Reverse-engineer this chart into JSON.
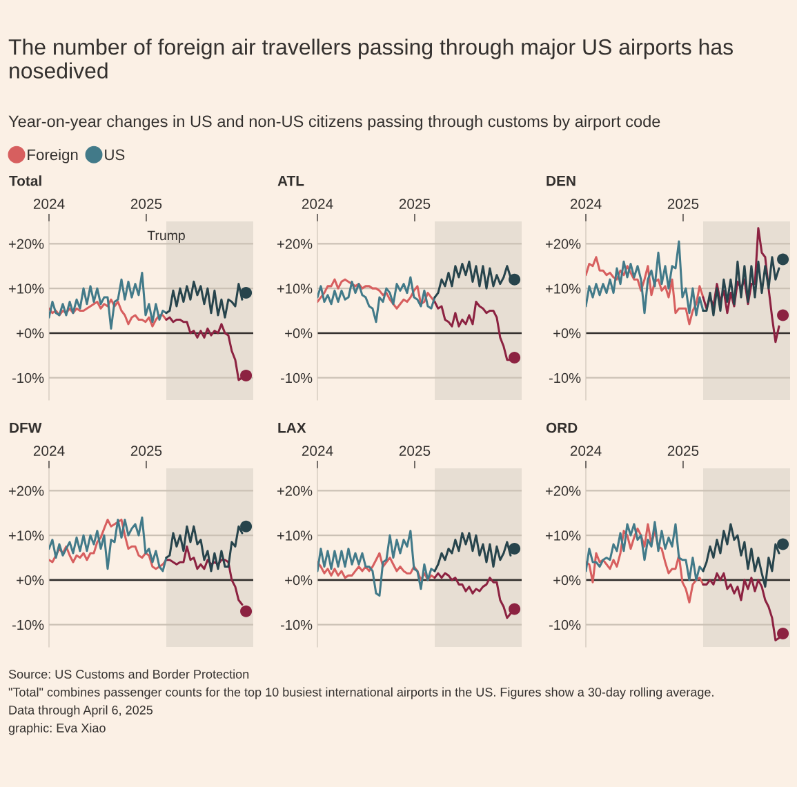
{
  "chart_data": [
    {
      "type": "other",
      "title": "The number of foreign air travellers passing through major US airports has nosedived",
      "subtitle": "Year-on-year changes in US and non-US citizens passing through customs by airport code",
      "annotations": [
        "Source: US Customs and Border Protection",
        "\"Total\" combines passenger counts for the top 10 busiest international airports in the US. Figures show a 30-day rolling average.",
        "Data through April 6, 2025",
        "graphic: Eva Xiao"
      ]
    },
    {
      "type": "line",
      "title": "Total",
      "legend": "top left",
      "grid": "y",
      "xlim": [
        2024,
        2026.1
      ],
      "xticks": [
        2024,
        2025
      ],
      "ylim": [
        -15,
        25
      ],
      "yticks": [
        {
          "value": 20,
          "label": "+20%"
        },
        {
          "value": 10,
          "label": "+10%"
        },
        {
          "value": 0,
          "label": "+0%"
        },
        {
          "value": -10,
          "label": "-10%"
        }
      ],
      "bands": [
        {
          "axis": "x",
          "from": 2025.206,
          "to": 2026.1,
          "label": "Trump",
          "color": "#e7ded3"
        }
      ],
      "ref_lines": [
        {
          "axis": "y",
          "value": 0,
          "color": "#33302e"
        }
      ],
      "x": [
        2024,
        2024.035,
        2024.071,
        2024.106,
        2024.142,
        2024.177,
        2024.213,
        2024.248,
        2024.284,
        2024.319,
        2024.355,
        2024.39,
        2024.426,
        2024.461,
        2024.496,
        2024.532,
        2024.567,
        2024.603,
        2024.638,
        2024.674,
        2024.709,
        2024.745,
        2024.78,
        2024.816,
        2024.851,
        2024.887,
        2024.922,
        2024.957,
        2024.993,
        2025.028,
        2025.064,
        2025.099,
        2025.135,
        2025.17,
        2025.206
      ],
      "series": [
        {
          "name": "Foreign",
          "color": "#d75f5f",
          "values": [
            5.5,
            4.5,
            5,
            4,
            5,
            4.5,
            5.5,
            4.5,
            5.5,
            5,
            5,
            5.5,
            6,
            6.5,
            7,
            5.5,
            6.5,
            6,
            7.5,
            6,
            7,
            5,
            4,
            2,
            3.5,
            4,
            3,
            3,
            2.5,
            3.5,
            1.5,
            3,
            4,
            4,
            3
          ]
        },
        {
          "color": "#8c2241",
          "x": [
            2025.206,
            2025.241,
            2025.277,
            2025.312,
            2025.348,
            2025.383,
            2025.418,
            2025.454,
            2025.489,
            2025.525,
            2025.56,
            2025.596,
            2025.631,
            2025.667,
            2025.702,
            2025.738,
            2025.773,
            2025.809,
            2025.844,
            2025.879,
            2025.915,
            2025.95,
            2025.986
          ],
          "values": [
            3,
            3.5,
            2.5,
            3,
            3,
            2.5,
            2.5,
            0,
            0.5,
            -1,
            0.5,
            -1,
            1,
            -0.5,
            0.5,
            0,
            2,
            0,
            -0.5,
            -4,
            -6,
            -10.5,
            -10
          ]
        },
        {
          "name": "US",
          "color": "#427a89",
          "values": [
            3.5,
            7,
            4.5,
            4,
            6.5,
            4,
            7,
            4.5,
            7.5,
            5.5,
            10,
            6.5,
            10.5,
            7,
            10,
            6.5,
            8,
            8,
            1,
            7,
            7.5,
            12,
            7.5,
            11.5,
            8,
            11,
            8.5,
            13.5,
            4,
            6.5,
            2.5,
            6.5,
            3,
            5,
            4.5
          ]
        },
        {
          "color": "#27444c",
          "x": [
            2025.206,
            2025.241,
            2025.277,
            2025.312,
            2025.348,
            2025.383,
            2025.418,
            2025.454,
            2025.489,
            2025.525,
            2025.56,
            2025.596,
            2025.631,
            2025.667,
            2025.702,
            2025.738,
            2025.773,
            2025.809,
            2025.844,
            2025.879,
            2025.915,
            2025.95,
            2025.986
          ],
          "values": [
            4.5,
            5,
            9.5,
            6,
            10,
            7,
            10.5,
            7.5,
            11.5,
            8.5,
            10.5,
            6.5,
            10,
            4.5,
            9.5,
            4,
            7.5,
            3.5,
            7.5,
            7,
            6,
            11,
            7.5
          ]
        },
        {
          "type": "scatter",
          "marker": "circle",
          "color": "#8c2241",
          "x": [
            2026.026
          ],
          "values": [
            -9.5
          ]
        },
        {
          "type": "scatter",
          "marker": "circle",
          "color": "#27444c",
          "x": [
            2026.026
          ],
          "values": [
            9
          ]
        }
      ]
    },
    {
      "type": "line",
      "title": "ATL",
      "grid": "y",
      "xlim": [
        2024,
        2026.1
      ],
      "xticks": [
        2024,
        2025
      ],
      "ylim": [
        -15,
        25
      ],
      "yticks": [
        {
          "value": 20,
          "label": "+20%"
        },
        {
          "value": 10,
          "label": "+10%"
        },
        {
          "value": 0,
          "label": "+0%"
        },
        {
          "value": -10,
          "label": "-10%"
        }
      ],
      "bands": [
        {
          "axis": "x",
          "from": 2025.206,
          "to": 2026.1,
          "color": "#e7ded3"
        }
      ],
      "ref_lines": [
        {
          "axis": "y",
          "value": 0,
          "color": "#33302e"
        }
      ],
      "x": [
        2024,
        2024.035,
        2024.071,
        2024.106,
        2024.142,
        2024.177,
        2024.213,
        2024.248,
        2024.284,
        2024.319,
        2024.355,
        2024.39,
        2024.426,
        2024.461,
        2024.496,
        2024.532,
        2024.567,
        2024.603,
        2024.638,
        2024.674,
        2024.709,
        2024.745,
        2024.78,
        2024.816,
        2024.851,
        2024.887,
        2024.922,
        2024.957,
        2024.993,
        2025.028,
        2025.064,
        2025.099,
        2025.135,
        2025.17,
        2025.206
      ],
      "series": [
        {
          "color": "#d75f5f",
          "values": [
            7,
            8,
            9,
            10.5,
            10.5,
            12,
            10,
            11.5,
            12,
            11.5,
            11,
            10.5,
            11,
            10,
            10.5,
            10.5,
            10,
            10,
            9.5,
            8.5,
            9,
            7.5,
            6.5,
            5.5,
            6.5,
            7.5,
            7,
            8,
            9.5,
            10.5,
            6.5,
            7,
            9,
            8,
            7
          ]
        },
        {
          "color": "#8c2241",
          "x": [
            2025.206,
            2025.241,
            2025.277,
            2025.312,
            2025.348,
            2025.383,
            2025.418,
            2025.454,
            2025.489,
            2025.525,
            2025.56,
            2025.596,
            2025.631,
            2025.667,
            2025.702,
            2025.738,
            2025.773,
            2025.809,
            2025.844,
            2025.879,
            2025.915,
            2025.95,
            2025.986
          ],
          "values": [
            7,
            5.5,
            6,
            3,
            2.5,
            1.5,
            4.5,
            1.5,
            3,
            2,
            4,
            2,
            7,
            6,
            5.5,
            4.5,
            5,
            5,
            3.5,
            -1,
            -3,
            -6,
            -6
          ]
        },
        {
          "color": "#427a89",
          "values": [
            8,
            10.5,
            7,
            8.5,
            6.5,
            9.5,
            7,
            9.5,
            7.5,
            8,
            11.5,
            9,
            11,
            8.5,
            8,
            6,
            5.5,
            2.5,
            8,
            7,
            10,
            9,
            6.5,
            11,
            9.5,
            11,
            9,
            12.5,
            8,
            7.5,
            6,
            9.5,
            6,
            5.5,
            8
          ]
        },
        {
          "color": "#27444c",
          "x": [
            2025.206,
            2025.241,
            2025.277,
            2025.312,
            2025.348,
            2025.383,
            2025.418,
            2025.454,
            2025.489,
            2025.525,
            2025.56,
            2025.596,
            2025.631,
            2025.667,
            2025.702,
            2025.738,
            2025.773,
            2025.809,
            2025.844,
            2025.879,
            2025.915,
            2025.95,
            2025.986
          ],
          "values": [
            8,
            9,
            12,
            10.5,
            13.5,
            10.5,
            15,
            12.5,
            15.5,
            13,
            16,
            11.5,
            15,
            10.5,
            15,
            10,
            14.5,
            10.5,
            13,
            11,
            12.5,
            15,
            12.5
          ]
        },
        {
          "type": "scatter",
          "marker": "circle",
          "color": "#8c2241",
          "x": [
            2026.026
          ],
          "values": [
            -5.5
          ]
        },
        {
          "type": "scatter",
          "marker": "circle",
          "color": "#27444c",
          "x": [
            2026.026
          ],
          "values": [
            12
          ]
        }
      ]
    },
    {
      "type": "line",
      "title": "DEN",
      "grid": "y",
      "xlim": [
        2024,
        2026.1
      ],
      "xticks": [
        2024,
        2025
      ],
      "ylim": [
        -15,
        25
      ],
      "yticks": [
        {
          "value": 20,
          "label": "+20%"
        },
        {
          "value": 10,
          "label": "+10%"
        },
        {
          "value": 0,
          "label": "+0%"
        },
        {
          "value": -10,
          "label": "-10%"
        }
      ],
      "bands": [
        {
          "axis": "x",
          "from": 2025.206,
          "to": 2026.1,
          "color": "#e7ded3"
        }
      ],
      "ref_lines": [
        {
          "axis": "y",
          "value": 0,
          "color": "#33302e"
        }
      ],
      "x": [
        2024,
        2024.035,
        2024.071,
        2024.106,
        2024.142,
        2024.177,
        2024.213,
        2024.248,
        2024.284,
        2024.319,
        2024.355,
        2024.39,
        2024.426,
        2024.461,
        2024.496,
        2024.532,
        2024.567,
        2024.603,
        2024.638,
        2024.674,
        2024.709,
        2024.745,
        2024.78,
        2024.816,
        2024.851,
        2024.887,
        2024.922,
        2024.957,
        2024.993,
        2025.028,
        2025.064,
        2025.099,
        2025.135,
        2025.17,
        2025.206
      ],
      "series": [
        {
          "color": "#d75f5f",
          "values": [
            13,
            15.5,
            15,
            17,
            14,
            14,
            13,
            13.5,
            12.5,
            12,
            14,
            13,
            15,
            13.5,
            12,
            12,
            9.5,
            12,
            15,
            8.5,
            11.5,
            12,
            9.5,
            10.5,
            8,
            12,
            4.5,
            5.5,
            5.5,
            5.5,
            2,
            5,
            6.5,
            10.5,
            8
          ]
        },
        {
          "color": "#8c2241",
          "x": [
            2025.206,
            2025.241,
            2025.277,
            2025.312,
            2025.348,
            2025.383,
            2025.418,
            2025.454,
            2025.489,
            2025.525,
            2025.56,
            2025.596,
            2025.631,
            2025.667,
            2025.702,
            2025.738,
            2025.773,
            2025.809,
            2025.844,
            2025.879,
            2025.915,
            2025.95,
            2025.986
          ],
          "values": [
            8,
            5.5,
            8,
            6,
            11,
            7,
            9.5,
            4.5,
            9,
            6,
            11.5,
            10,
            12,
            6.5,
            11,
            11,
            23.5,
            18,
            17,
            10,
            3.5,
            -2,
            1.5
          ]
        },
        {
          "color": "#427a89",
          "values": [
            6,
            10.5,
            8,
            11,
            8.5,
            11,
            9,
            12,
            9,
            14.5,
            11,
            16,
            12.5,
            15.5,
            12.5,
            15,
            12,
            4.5,
            12,
            14,
            10.5,
            18,
            11,
            15,
            10,
            15,
            14.5,
            20.5,
            8,
            10,
            4.5,
            10,
            4,
            8,
            5
          ]
        },
        {
          "color": "#27444c",
          "x": [
            2025.206,
            2025.241,
            2025.277,
            2025.312,
            2025.348,
            2025.383,
            2025.418,
            2025.454,
            2025.489,
            2025.525,
            2025.56,
            2025.596,
            2025.631,
            2025.667,
            2025.702,
            2025.738,
            2025.773,
            2025.809,
            2025.844,
            2025.879,
            2025.915,
            2025.95,
            2025.986
          ],
          "values": [
            5,
            5,
            9,
            4,
            10,
            5,
            12,
            7,
            12,
            6.5,
            16,
            8,
            15,
            7,
            15,
            8,
            16,
            9,
            15,
            10,
            17,
            12,
            14.5
          ]
        },
        {
          "type": "scatter",
          "marker": "circle",
          "color": "#8c2241",
          "x": [
            2026.026
          ],
          "values": [
            4
          ]
        },
        {
          "type": "scatter",
          "marker": "circle",
          "color": "#27444c",
          "x": [
            2026.026
          ],
          "values": [
            16.5
          ]
        }
      ]
    },
    {
      "type": "line",
      "title": "DFW",
      "grid": "y",
      "xlim": [
        2024,
        2026.1
      ],
      "xticks": [
        2024,
        2025
      ],
      "ylim": [
        -15,
        25
      ],
      "yticks": [
        {
          "value": 20,
          "label": "+20%"
        },
        {
          "value": 10,
          "label": "+10%"
        },
        {
          "value": 0,
          "label": "+0%"
        },
        {
          "value": -10,
          "label": "-10%"
        }
      ],
      "bands": [
        {
          "axis": "x",
          "from": 2025.206,
          "to": 2026.1,
          "color": "#e7ded3"
        }
      ],
      "ref_lines": [
        {
          "axis": "y",
          "value": 0,
          "color": "#33302e"
        }
      ],
      "x": [
        2024,
        2024.035,
        2024.071,
        2024.106,
        2024.142,
        2024.177,
        2024.213,
        2024.248,
        2024.284,
        2024.319,
        2024.355,
        2024.39,
        2024.426,
        2024.461,
        2024.496,
        2024.532,
        2024.567,
        2024.603,
        2024.638,
        2024.674,
        2024.709,
        2024.745,
        2024.78,
        2024.816,
        2024.851,
        2024.887,
        2024.922,
        2024.957,
        2024.993,
        2025.028,
        2025.064,
        2025.099,
        2025.135,
        2025.17,
        2025.206
      ],
      "series": [
        {
          "color": "#d75f5f",
          "values": [
            4.5,
            4,
            5.5,
            7,
            6,
            7.5,
            5.5,
            4,
            5.5,
            5,
            6,
            4.5,
            6,
            6,
            8.5,
            9.5,
            11.5,
            13.5,
            12,
            12.5,
            13,
            13.5,
            10,
            7,
            7.5,
            7.5,
            5.5,
            5,
            6,
            5.5,
            3,
            2.5,
            3,
            3.5,
            4.5
          ]
        },
        {
          "color": "#8c2241",
          "x": [
            2025.206,
            2025.241,
            2025.277,
            2025.312,
            2025.348,
            2025.383,
            2025.418,
            2025.454,
            2025.489,
            2025.525,
            2025.56,
            2025.596,
            2025.631,
            2025.667,
            2025.702,
            2025.738,
            2025.773,
            2025.809,
            2025.844,
            2025.879,
            2025.915,
            2025.95,
            2025.986
          ],
          "values": [
            4.5,
            4.5,
            4,
            3.5,
            4,
            4,
            7.5,
            4.5,
            5,
            2.5,
            3.5,
            2.5,
            4.5,
            3.5,
            4,
            3.5,
            4.5,
            4.5,
            4,
            0,
            -1.5,
            -4.5,
            -5.5
          ]
        },
        {
          "color": "#427a89",
          "values": [
            7,
            9,
            5,
            8,
            5.5,
            7,
            8.5,
            6,
            9.5,
            6.5,
            10,
            6.5,
            10,
            8,
            11,
            7,
            10,
            2.5,
            9,
            8.5,
            13.5,
            9.5,
            13.5,
            10,
            11.5,
            12.5,
            10,
            14,
            6,
            7,
            4,
            6.5,
            3,
            2,
            5
          ]
        },
        {
          "color": "#27444c",
          "x": [
            2025.206,
            2025.241,
            2025.277,
            2025.312,
            2025.348,
            2025.383,
            2025.418,
            2025.454,
            2025.489,
            2025.525,
            2025.56,
            2025.596,
            2025.631,
            2025.667,
            2025.702,
            2025.738,
            2025.773,
            2025.809,
            2025.844,
            2025.879,
            2025.915,
            2025.95,
            2025.986
          ],
          "values": [
            5,
            5.5,
            10.5,
            7.5,
            10,
            6.5,
            12,
            8.5,
            12,
            8,
            9,
            4.5,
            6.5,
            2,
            6,
            2.5,
            6.5,
            3,
            3,
            8.5,
            7.5,
            12,
            10.5
          ]
        },
        {
          "type": "scatter",
          "marker": "circle",
          "color": "#8c2241",
          "x": [
            2026.026
          ],
          "values": [
            -7
          ]
        },
        {
          "type": "scatter",
          "marker": "circle",
          "color": "#27444c",
          "x": [
            2026.026
          ],
          "values": [
            12
          ]
        }
      ]
    },
    {
      "type": "line",
      "title": "LAX",
      "grid": "y",
      "xlim": [
        2024,
        2026.1
      ],
      "xticks": [
        2024,
        2025
      ],
      "ylim": [
        -15,
        25
      ],
      "yticks": [
        {
          "value": 20,
          "label": "+20%"
        },
        {
          "value": 10,
          "label": "+10%"
        },
        {
          "value": 0,
          "label": "+0%"
        },
        {
          "value": -10,
          "label": "-10%"
        }
      ],
      "bands": [
        {
          "axis": "x",
          "from": 2025.206,
          "to": 2026.1,
          "color": "#e7ded3"
        }
      ],
      "ref_lines": [
        {
          "axis": "y",
          "value": 0,
          "color": "#33302e"
        }
      ],
      "x": [
        2024,
        2024.035,
        2024.071,
        2024.106,
        2024.142,
        2024.177,
        2024.213,
        2024.248,
        2024.284,
        2024.319,
        2024.355,
        2024.39,
        2024.426,
        2024.461,
        2024.496,
        2024.532,
        2024.567,
        2024.603,
        2024.638,
        2024.674,
        2024.709,
        2024.745,
        2024.78,
        2024.816,
        2024.851,
        2024.887,
        2024.922,
        2024.957,
        2024.993,
        2025.028,
        2025.064,
        2025.099,
        2025.135,
        2025.17,
        2025.206
      ],
      "series": [
        {
          "color": "#d75f5f",
          "values": [
            4,
            3,
            1.5,
            2.5,
            1,
            2.5,
            1,
            2,
            0.5,
            1,
            1,
            2,
            3,
            2,
            3,
            2,
            3,
            4.5,
            6,
            3,
            4,
            5,
            3.5,
            2,
            3,
            2,
            1.5,
            1.5,
            3,
            2,
            0,
            1.5,
            0,
            1,
            0.5
          ]
        },
        {
          "color": "#8c2241",
          "x": [
            2025.206,
            2025.241,
            2025.277,
            2025.312,
            2025.348,
            2025.383,
            2025.418,
            2025.454,
            2025.489,
            2025.525,
            2025.56,
            2025.596,
            2025.631,
            2025.667,
            2025.702,
            2025.738,
            2025.773,
            2025.809,
            2025.844,
            2025.879,
            2025.915,
            2025.95,
            2025.986
          ],
          "values": [
            0.5,
            1.5,
            0.5,
            1.5,
            1,
            0,
            0.5,
            -1,
            -1,
            -2.5,
            -1.5,
            -3,
            -2,
            -2.5,
            -1.5,
            -1,
            0.5,
            -0.5,
            -0.5,
            -4.5,
            -6,
            -8.5,
            -7.5
          ]
        },
        {
          "color": "#427a89",
          "values": [
            2,
            7,
            3,
            6.5,
            2.5,
            6.5,
            3,
            6.5,
            3,
            7,
            3.5,
            6,
            3.5,
            6,
            3,
            3,
            2,
            -3,
            -3.5,
            4,
            4.5,
            10,
            5,
            9,
            6,
            9,
            7.5,
            11,
            2.5,
            2,
            -2,
            3.5,
            0,
            2.5,
            2
          ]
        },
        {
          "color": "#27444c",
          "x": [
            2025.206,
            2025.241,
            2025.277,
            2025.312,
            2025.348,
            2025.383,
            2025.418,
            2025.454,
            2025.489,
            2025.525,
            2025.56,
            2025.596,
            2025.631,
            2025.667,
            2025.702,
            2025.738,
            2025.773,
            2025.809,
            2025.844,
            2025.879,
            2025.915,
            2025.95,
            2025.986
          ],
          "values": [
            2,
            3.5,
            6,
            4.5,
            7,
            6,
            9,
            6.5,
            10.5,
            8,
            10.5,
            6.5,
            10,
            5.5,
            8,
            4,
            8,
            3,
            7.5,
            4.5,
            6,
            8.5,
            5.5
          ]
        },
        {
          "type": "scatter",
          "marker": "circle",
          "color": "#8c2241",
          "x": [
            2026.026
          ],
          "values": [
            -6.5
          ]
        },
        {
          "type": "scatter",
          "marker": "circle",
          "color": "#27444c",
          "x": [
            2026.026
          ],
          "values": [
            7
          ]
        }
      ]
    },
    {
      "type": "line",
      "title": "ORD",
      "grid": "y",
      "xlim": [
        2024,
        2026.1
      ],
      "xticks": [
        2024,
        2025
      ],
      "ylim": [
        -15,
        25
      ],
      "yticks": [
        {
          "value": 20,
          "label": "+20%"
        },
        {
          "value": 10,
          "label": "+10%"
        },
        {
          "value": 0,
          "label": "+0%"
        },
        {
          "value": -10,
          "label": "-10%"
        }
      ],
      "bands": [
        {
          "axis": "x",
          "from": 2025.206,
          "to": 2026.1,
          "color": "#e7ded3"
        }
      ],
      "ref_lines": [
        {
          "axis": "y",
          "value": 0,
          "color": "#33302e"
        }
      ],
      "x": [
        2024,
        2024.035,
        2024.071,
        2024.106,
        2024.142,
        2024.177,
        2024.213,
        2024.248,
        2024.284,
        2024.319,
        2024.355,
        2024.39,
        2024.426,
        2024.461,
        2024.496,
        2024.532,
        2024.567,
        2024.603,
        2024.638,
        2024.674,
        2024.709,
        2024.745,
        2024.78,
        2024.816,
        2024.851,
        2024.887,
        2024.922,
        2024.957,
        2024.993,
        2025.028,
        2025.064,
        2025.099,
        2025.135,
        2025.17,
        2025.206
      ],
      "series": [
        {
          "color": "#d75f5f",
          "values": [
            4,
            3.5,
            -0.5,
            6,
            4,
            4.5,
            3.5,
            2.5,
            4.5,
            3,
            6,
            11,
            10,
            7,
            9.5,
            11.5,
            10,
            7.5,
            12.5,
            8,
            11,
            7.5,
            7,
            4,
            1.5,
            2.5,
            2.5,
            5.5,
            -0.5,
            -2,
            -5,
            -1,
            0,
            0.5,
            -1
          ]
        },
        {
          "color": "#8c2241",
          "x": [
            2025.206,
            2025.241,
            2025.277,
            2025.312,
            2025.348,
            2025.383,
            2025.418,
            2025.454,
            2025.489,
            2025.525,
            2025.56,
            2025.596,
            2025.631,
            2025.667,
            2025.702,
            2025.738,
            2025.773,
            2025.809,
            2025.844,
            2025.879,
            2025.915,
            2025.95,
            2025.986
          ],
          "values": [
            -1,
            -1,
            0,
            -1,
            1.5,
            0,
            1.5,
            -2,
            -1,
            -3,
            -1.5,
            -4.5,
            0,
            -2,
            0.5,
            -2.5,
            0,
            -1.5,
            -4.5,
            -6,
            -8.5,
            -13.5,
            -13
          ]
        },
        {
          "color": "#427a89",
          "values": [
            2,
            7,
            4,
            4,
            3,
            4.5,
            5,
            4.5,
            8,
            6.5,
            10.5,
            6.5,
            12.5,
            10,
            12.5,
            9,
            10,
            4.5,
            9,
            7.5,
            13,
            6.5,
            11,
            7,
            9.5,
            7.5,
            12.5,
            5,
            4.5,
            4.5,
            0,
            5,
            0,
            3,
            2
          ]
        },
        {
          "color": "#27444c",
          "x": [
            2025.206,
            2025.241,
            2025.277,
            2025.312,
            2025.348,
            2025.383,
            2025.418,
            2025.454,
            2025.489,
            2025.525,
            2025.56,
            2025.596,
            2025.631,
            2025.667,
            2025.702,
            2025.738,
            2025.773,
            2025.809,
            2025.844,
            2025.879,
            2025.915,
            2025.95,
            2025.986
          ],
          "values": [
            2,
            4,
            7.5,
            5,
            9,
            6,
            11,
            8,
            12.5,
            9,
            10,
            5.5,
            8.5,
            2.5,
            7,
            2,
            5,
            1.5,
            -1.5,
            5,
            2,
            8,
            6
          ]
        },
        {
          "type": "scatter",
          "marker": "circle",
          "color": "#8c2241",
          "x": [
            2026.026
          ],
          "values": [
            -12
          ]
        },
        {
          "type": "scatter",
          "marker": "circle",
          "color": "#27444c",
          "x": [
            2026.026
          ],
          "values": [
            8
          ]
        }
      ]
    }
  ]
}
